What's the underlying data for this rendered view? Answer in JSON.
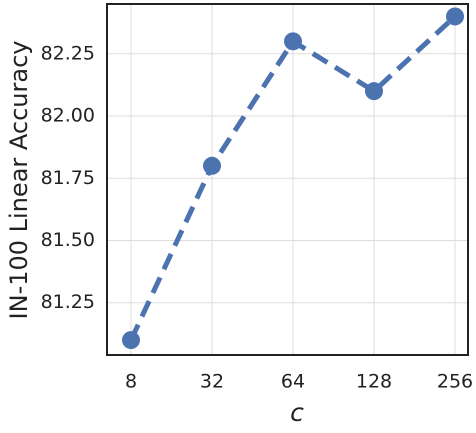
{
  "chart_data": {
    "type": "line",
    "xlabel": "c",
    "ylabel": "IN-100 Linear Accuracy",
    "categories": [
      "8",
      "32",
      "64",
      "128",
      "256"
    ],
    "series": [
      {
        "name": "IN-100",
        "color": "#4c72b0",
        "values": [
          81.1,
          81.8,
          82.3,
          82.1,
          82.4
        ]
      }
    ],
    "ylim": [
      81.04,
      82.45
    ],
    "yticks": [
      81.25,
      {
        "value": 81.5,
        "label": "81.50"
      },
      81.75,
      {
        "value": 82.0,
        "label": "82.00"
      },
      82.25
    ],
    "grid": true
  }
}
